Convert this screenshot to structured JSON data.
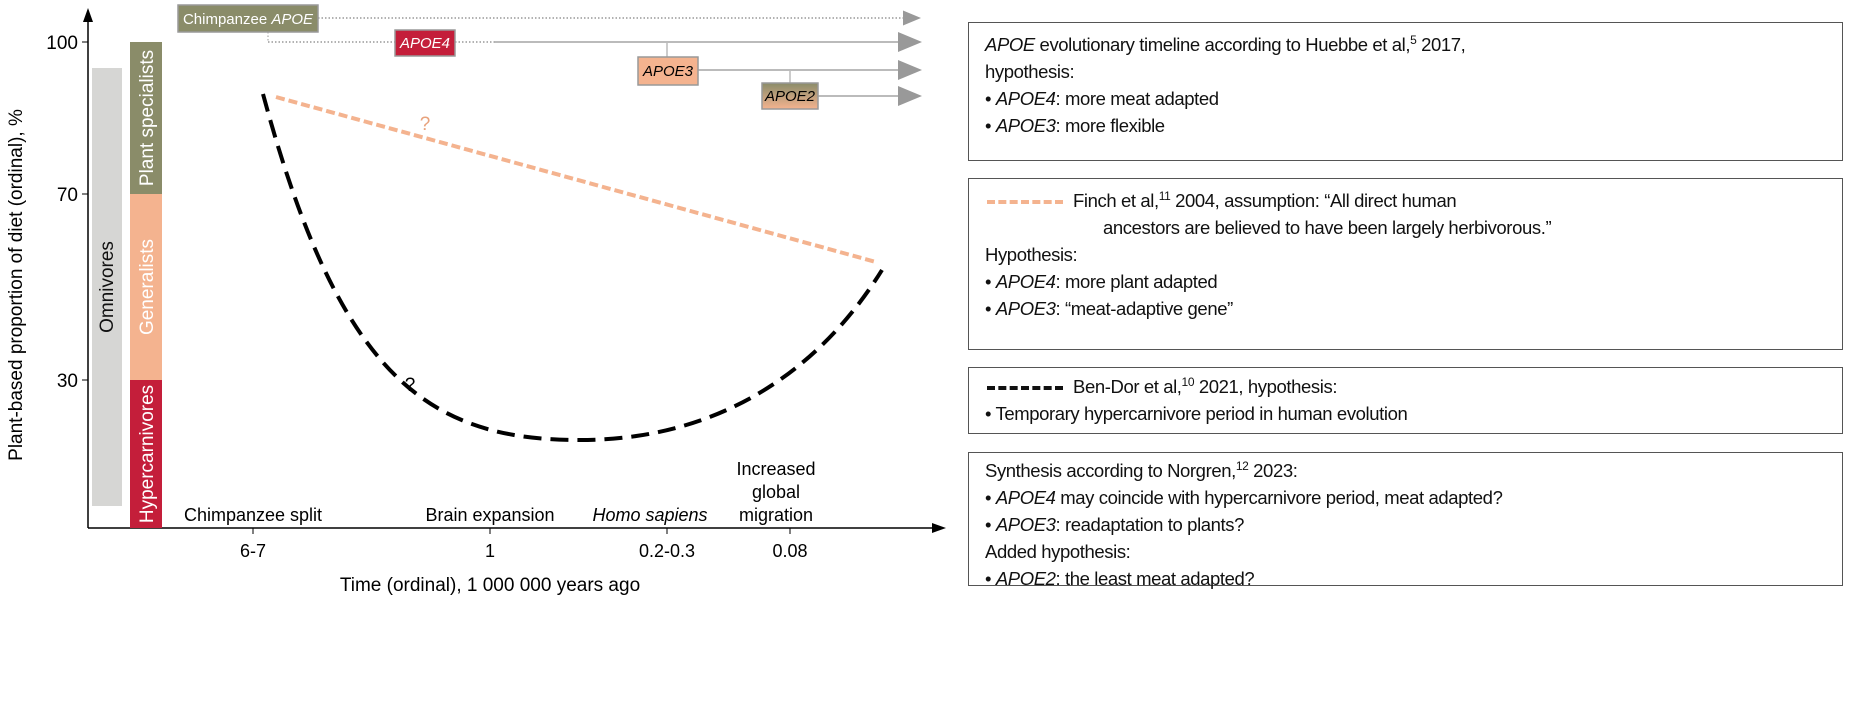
{
  "colors": {
    "plant": "#8a8c69",
    "generalist": "#f4b38f",
    "hyper": "#c41e3a",
    "omnivore": "#d6d6d4",
    "timeline": "#aaaaaa"
  },
  "axis": {
    "ylabel": "Plant-based proportion of diet (ordinal), %",
    "yticks": [
      "100",
      "70",
      "30"
    ],
    "xlabel": "Time (ordinal), 1 000 000 years ago",
    "xticks": [
      "6-7",
      "1",
      "0.2-0.3",
      "0.08"
    ]
  },
  "diet_bars": {
    "omnivores": "Omnivores",
    "plant_specialists": "Plant specialists",
    "generalists": "Generalists",
    "hypercarnivores": "Hypercarnivores"
  },
  "events": {
    "chimp_split": "Chimpanzee split",
    "brain": "Brain expansion",
    "sapiens": "Homo sapiens",
    "migration": [
      "Increased",
      "global",
      "migration"
    ]
  },
  "timeline": {
    "chimp": "Chimpanzee ",
    "chimp_it": "APOE",
    "apoe4": "APOE4",
    "apoe3": "APOE3",
    "apoe2": "APOE2"
  },
  "question_mark": "?",
  "boxes": [
    {
      "lines": [
        [
          {
            "t": "APOE",
            "i": true
          },
          {
            "t": " evolutionary timeline according to Huebbe et al,"
          },
          {
            "t": "5",
            "sup": true
          },
          {
            "t": " 2017,"
          }
        ],
        [
          {
            "t": "hypothesis:"
          }
        ],
        [
          {
            "t": "• "
          },
          {
            "t": "APOE4",
            "i": true
          },
          {
            "t": ": more meat adapted"
          }
        ],
        [
          {
            "t": "• "
          },
          {
            "t": "APOE3",
            "i": true
          },
          {
            "t": ": more flexible"
          }
        ]
      ]
    },
    {
      "legend": "peach",
      "lines": [
        [
          {
            "t": "Finch et al,"
          },
          {
            "t": "11",
            "sup": true
          },
          {
            "t": " 2004, assumption: “All direct human"
          }
        ],
        [
          {
            "t": "ancestors are believed to have been largely herbivorous.”",
            "indent": true
          }
        ],
        [
          {
            "t": "Hypothesis:"
          }
        ],
        [
          {
            "t": "• "
          },
          {
            "t": "APOE4",
            "i": true
          },
          {
            "t": ": more plant adapted"
          }
        ],
        [
          {
            "t": "• "
          },
          {
            "t": "APOE3",
            "i": true
          },
          {
            "t": ": “meat-adaptive gene”"
          }
        ]
      ]
    },
    {
      "legend": "black",
      "lines": [
        [
          {
            "t": "Ben-Dor et al,"
          },
          {
            "t": "10",
            "sup": true
          },
          {
            "t": " 2021, hypothesis:"
          }
        ],
        [
          {
            "t": "• Temporary hypercarnivore period in human evolution"
          }
        ]
      ]
    },
    {
      "lines": [
        [
          {
            "t": "Synthesis according to Norgren,"
          },
          {
            "t": "12",
            "sup": true
          },
          {
            "t": " 2023:"
          }
        ],
        [
          {
            "t": "• "
          },
          {
            "t": "APOE4",
            "i": true
          },
          {
            "t": " may coincide with hypercarnivore period, meat adapted?"
          }
        ],
        [
          {
            "t": "• "
          },
          {
            "t": "APOE3",
            "i": true
          },
          {
            "t": ": readaptation to plants?"
          }
        ],
        [
          {
            "t": "Added hypothesis:"
          }
        ],
        [
          {
            "t": "• "
          },
          {
            "t": "APOE2",
            "i": true
          },
          {
            "t": ": the least meat adapted?"
          }
        ]
      ]
    }
  ]
}
